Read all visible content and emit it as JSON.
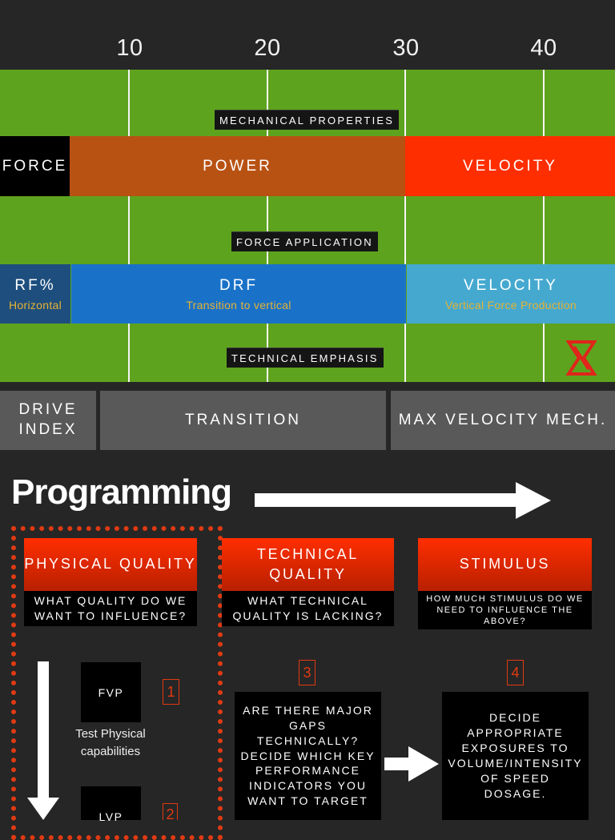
{
  "axis": {
    "ticks": [
      "10",
      "20",
      "30",
      "40"
    ]
  },
  "mechanical": {
    "tag": "MECHANICAL PROPERTIES",
    "bands": [
      {
        "label": "FORCE",
        "color": "#000000"
      },
      {
        "label": "POWER",
        "color": "#b85213"
      },
      {
        "label": "VELOCITY",
        "color": "#ff2e00"
      }
    ]
  },
  "force_application": {
    "tag": "FORCE APPLICATION",
    "bands": [
      {
        "label": "RF%",
        "sub": "Horizontal",
        "color": "#1e4e7d"
      },
      {
        "label": "DRF",
        "sub": "Transition to vertical",
        "color": "#1a72c8"
      },
      {
        "label": "VELOCITY",
        "sub": "Vertical Force Production",
        "color": "#45a9cf"
      }
    ]
  },
  "technical_emphasis": {
    "tag": "TECHNICAL EMPHASIS",
    "boxes": [
      "DRIVE INDEX",
      "TRANSITION",
      "MAX VELOCITY MECH."
    ]
  },
  "logo_icon": "hourglass-logo-icon",
  "programming": {
    "title": "Programming",
    "cards": [
      {
        "head": "PHYSICAL QUALITY",
        "question": "WHAT QUALITY DO WE WANT TO INFLUENCE?"
      },
      {
        "head": "TECHNICAL QUALITY",
        "question": "WHAT TECHNICAL QUALITY IS LACKING?"
      },
      {
        "head": "STIMULUS",
        "question": "HOW MUCH STIMULUS DO WE NEED TO INFLUENCE THE ABOVE?"
      }
    ],
    "fvp": "FVP",
    "lvp": "LVP",
    "test_caption": "Test Physical capabilities",
    "num1": "1",
    "num2": "2",
    "num3": "3",
    "num4": "4",
    "step3_text": "ARE THERE MAJOR GAPS TECHNICALLY? DECIDE WHICH KEY PERFORMANCE INDICATORS YOU WANT TO TARGET",
    "step4_text": "DECIDE APPROPRIATE EXPOSURES TO VOLUME/INTENSITY OF SPEED DOSAGE."
  }
}
